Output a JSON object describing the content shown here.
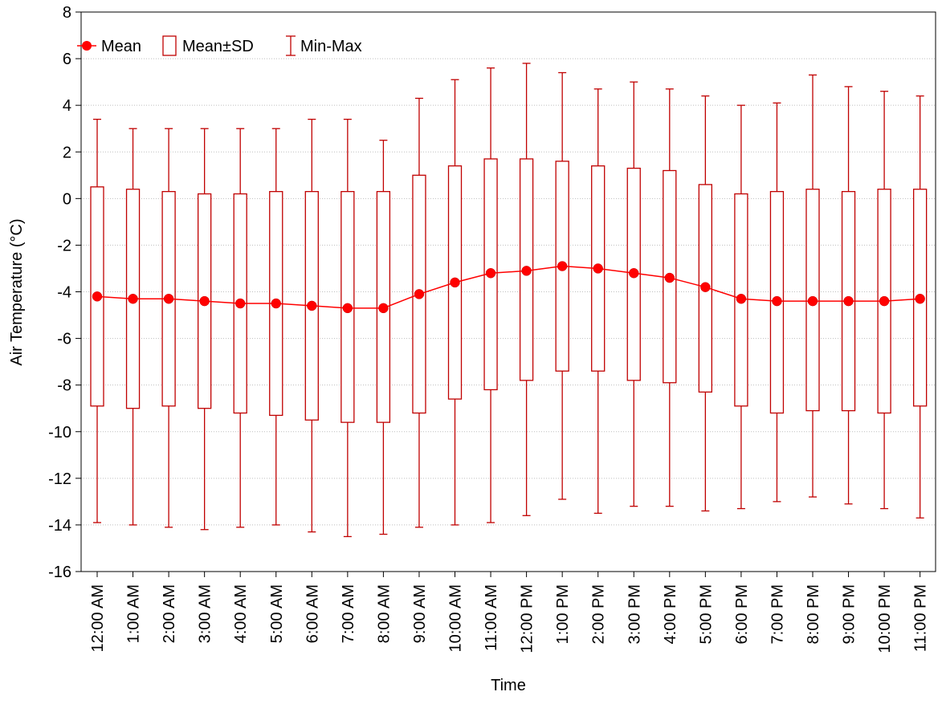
{
  "chart_data": {
    "type": "box",
    "xlabel": "Time",
    "ylabel": "Air Temperature (°C)",
    "ylim": [
      -16,
      8
    ],
    "yticks": [
      8,
      6,
      4,
      2,
      0,
      -2,
      -4,
      -6,
      -8,
      -10,
      -12,
      -14,
      -16
    ],
    "grid": "horizontal dotted",
    "legend_position": "top-left",
    "colors": {
      "series": "#c00000",
      "mean_marker": "#ff0000",
      "grid": "#bfbfbf",
      "axis": "#000000"
    },
    "legend": [
      {
        "label": "Mean",
        "icon": "line-dot-icon"
      },
      {
        "label": "Mean±SD",
        "icon": "box-icon"
      },
      {
        "label": "Min-Max",
        "icon": "whisker-icon"
      }
    ],
    "categories": [
      "12:00 AM",
      "1:00 AM",
      "2:00 AM",
      "3:00 AM",
      "4:00 AM",
      "5:00 AM",
      "6:00 AM",
      "7:00 AM",
      "8:00 AM",
      "9:00 AM",
      "10:00 AM",
      "11:00 AM",
      "12:00 PM",
      "1:00 PM",
      "2:00 PM",
      "3:00 PM",
      "4:00 PM",
      "5:00 PM",
      "6:00 PM",
      "7:00 PM",
      "8:00 PM",
      "9:00 PM",
      "10:00 PM",
      "11:00 PM"
    ],
    "series": [
      {
        "name": "Mean",
        "values": [
          -4.2,
          -4.3,
          -4.3,
          -4.4,
          -4.5,
          -4.5,
          -4.6,
          -4.7,
          -4.7,
          -4.1,
          -3.6,
          -3.2,
          -3.1,
          -2.9,
          -3.0,
          -3.2,
          -3.4,
          -3.8,
          -4.3,
          -4.4,
          -4.4,
          -4.4,
          -4.4,
          -4.3
        ]
      },
      {
        "name": "Mean+SD",
        "values": [
          0.5,
          0.4,
          0.3,
          0.2,
          0.2,
          0.3,
          0.3,
          0.3,
          0.3,
          1.0,
          1.4,
          1.7,
          1.7,
          1.6,
          1.4,
          1.3,
          1.2,
          0.6,
          0.2,
          0.3,
          0.4,
          0.3,
          0.4,
          0.4
        ]
      },
      {
        "name": "Mean-SD",
        "values": [
          -8.9,
          -9.0,
          -8.9,
          -9.0,
          -9.2,
          -9.3,
          -9.5,
          -9.6,
          -9.6,
          -9.2,
          -8.6,
          -8.2,
          -7.8,
          -7.4,
          -7.4,
          -7.8,
          -7.9,
          -8.3,
          -8.9,
          -9.2,
          -9.1,
          -9.1,
          -9.2,
          -8.9
        ]
      },
      {
        "name": "Max",
        "values": [
          3.4,
          3.0,
          3.0,
          3.0,
          3.0,
          3.0,
          3.4,
          3.4,
          2.5,
          4.3,
          5.1,
          5.6,
          5.8,
          5.4,
          4.7,
          5.0,
          4.7,
          4.4,
          4.0,
          4.1,
          5.3,
          4.8,
          4.6,
          4.4
        ]
      },
      {
        "name": "Min",
        "values": [
          -13.9,
          -14.0,
          -14.1,
          -14.2,
          -14.1,
          -14.0,
          -14.3,
          -14.5,
          -14.4,
          -14.1,
          -14.0,
          -13.9,
          -13.6,
          -12.9,
          -13.5,
          -13.2,
          -13.2,
          -13.4,
          -13.3,
          -13.0,
          -12.8,
          -13.1,
          -13.3,
          -13.7
        ]
      }
    ]
  }
}
